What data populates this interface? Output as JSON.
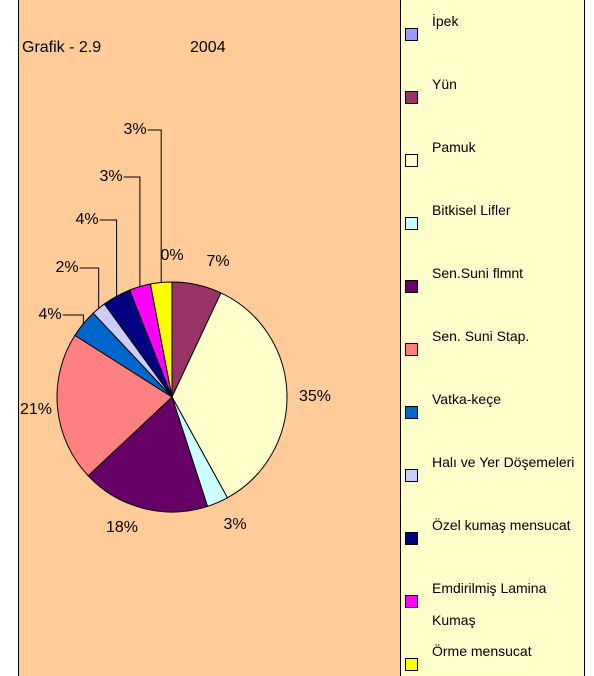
{
  "chart_data": {
    "type": "pie",
    "title": "Grafik - 2.9",
    "subtitle": "2004",
    "categories": [
      "İpek",
      "Yün",
      "Pamuk",
      "Bitkisel Lifler",
      "Sen.Suni flmnt",
      "Sen. Suni Stap.",
      "Vatka-keçe",
      "Halı ve Yer Döşemeleri",
      "Özel kumaş mensucat",
      "Emdirilmiş Lamina Kumaş",
      "Örme mensucat"
    ],
    "values": [
      0,
      7,
      35,
      3,
      18,
      21,
      4,
      2,
      4,
      3,
      3
    ],
    "value_labels": [
      "0%",
      "7%",
      "35%",
      "3%",
      "18%",
      "21%",
      "4%",
      "2%",
      "4%",
      "3%",
      "3%"
    ],
    "colors": [
      "#9999FF",
      "#993366",
      "#FFFFCC",
      "#CCFFFF",
      "#660066",
      "#FF8080",
      "#0066CC",
      "#CCCCFF",
      "#000080",
      "#FF00FF",
      "#FFFF00"
    ],
    "legend": "right"
  }
}
